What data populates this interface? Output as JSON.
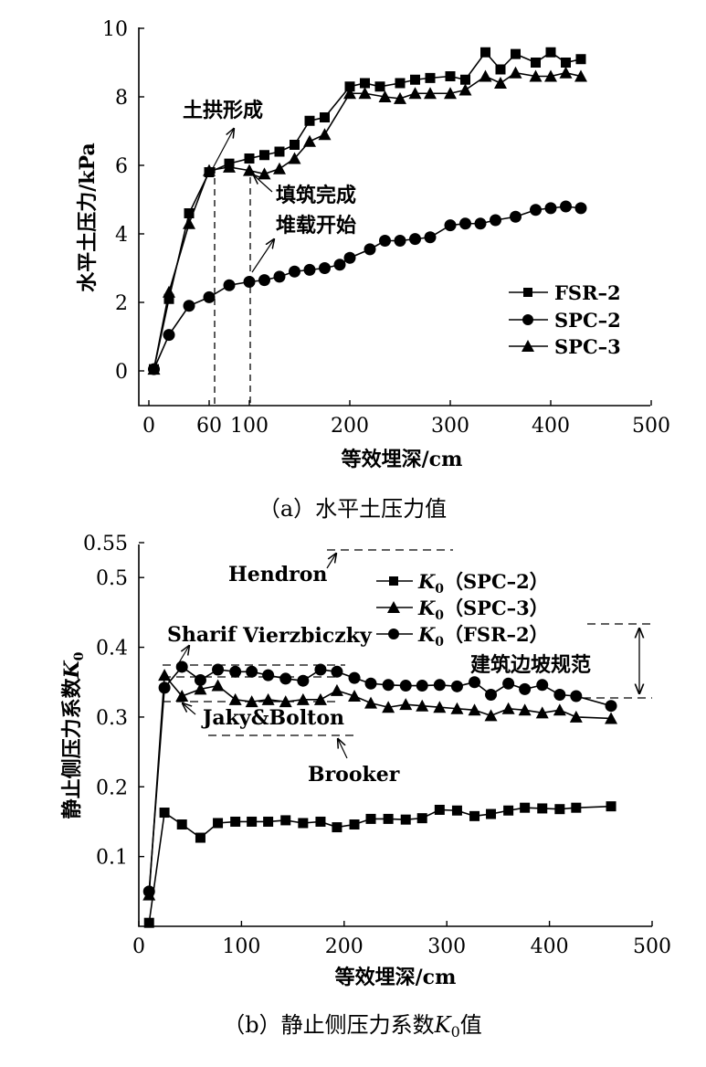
{
  "chart_data": [
    {
      "type": "line",
      "caption": "（a）水平土压力值",
      "xlabel": "等效埋深/cm",
      "ylabel": "水平土压力/kPa",
      "xlim": [
        -10,
        500
      ],
      "ylim": [
        -1,
        10
      ],
      "xticks": [
        0,
        200,
        300,
        400,
        500
      ],
      "extra_xticks": [
        "60",
        "100"
      ],
      "yticks": [
        0,
        2,
        4,
        6,
        8,
        10
      ],
      "series": [
        {
          "name": "FSR-2",
          "marker": "square",
          "x": [
            5,
            20,
            40,
            60,
            80,
            100,
            115,
            130,
            145,
            160,
            175,
            200,
            215,
            230,
            250,
            265,
            280,
            300,
            315,
            335,
            350,
            365,
            385,
            400,
            415,
            430
          ],
          "y": [
            0.05,
            2.1,
            4.6,
            5.8,
            6.05,
            6.2,
            6.3,
            6.4,
            6.6,
            7.3,
            7.4,
            8.3,
            8.4,
            8.3,
            8.4,
            8.5,
            8.55,
            8.6,
            8.5,
            9.3,
            8.8,
            9.25,
            9.0,
            9.3,
            9.0,
            9.1
          ]
        },
        {
          "name": "SPC-2",
          "marker": "circle",
          "x": [
            5,
            20,
            40,
            60,
            80,
            100,
            115,
            130,
            145,
            160,
            175,
            190,
            200,
            220,
            235,
            250,
            265,
            280,
            300,
            315,
            330,
            345,
            365,
            385,
            400,
            415,
            430
          ],
          "y": [
            0.05,
            1.05,
            1.9,
            2.15,
            2.5,
            2.6,
            2.65,
            2.75,
            2.9,
            2.95,
            3.0,
            3.1,
            3.3,
            3.55,
            3.8,
            3.8,
            3.85,
            3.9,
            4.25,
            4.3,
            4.3,
            4.4,
            4.5,
            4.7,
            4.75,
            4.8,
            4.75
          ]
        },
        {
          "name": "SPC-3",
          "marker": "triangle",
          "x": [
            5,
            20,
            40,
            60,
            80,
            100,
            115,
            130,
            145,
            160,
            175,
            200,
            215,
            235,
            250,
            265,
            280,
            300,
            315,
            335,
            350,
            365,
            385,
            400,
            415,
            430
          ],
          "y": [
            0.05,
            2.3,
            4.3,
            5.85,
            5.95,
            5.85,
            5.75,
            5.9,
            6.2,
            6.7,
            6.9,
            8.1,
            8.1,
            8.0,
            7.95,
            8.1,
            8.1,
            8.1,
            8.2,
            8.6,
            8.4,
            8.7,
            8.6,
            8.6,
            8.7,
            8.6
          ]
        }
      ],
      "annotations": [
        "土拱形成",
        "填筑完成",
        "堆载开始"
      ]
    },
    {
      "type": "line",
      "caption": "（b）静止侧压力系数K0值",
      "xlabel": "等效埋深/cm",
      "ylabel": "静止侧压力系数K0",
      "xlim": [
        0,
        500
      ],
      "ylim": [
        0,
        0.55
      ],
      "xticks": [
        0,
        100,
        200,
        300,
        400,
        500
      ],
      "yticks": [
        0.1,
        0.2,
        0.3,
        0.4,
        0.5,
        0.55
      ],
      "series": [
        {
          "name": "K0（SPC-2）",
          "marker": "square",
          "x": [
            10,
            25,
            42,
            60,
            77,
            94,
            110,
            126,
            143,
            160,
            177,
            193,
            210,
            226,
            243,
            260,
            276,
            293,
            310,
            327,
            343,
            360,
            376,
            393,
            410,
            426,
            460
          ],
          "y": [
            0.005,
            0.163,
            0.146,
            0.127,
            0.148,
            0.15,
            0.15,
            0.15,
            0.152,
            0.148,
            0.15,
            0.142,
            0.146,
            0.154,
            0.154,
            0.153,
            0.155,
            0.167,
            0.166,
            0.158,
            0.161,
            0.166,
            0.17,
            0.169,
            0.168,
            0.17,
            0.172
          ]
        },
        {
          "name": "K0（SPC-3）",
          "marker": "triangle",
          "x": [
            10,
            25,
            42,
            60,
            77,
            94,
            110,
            126,
            143,
            160,
            177,
            193,
            210,
            226,
            243,
            260,
            276,
            293,
            310,
            327,
            343,
            360,
            376,
            393,
            410,
            426,
            460
          ],
          "y": [
            0.045,
            0.36,
            0.33,
            0.34,
            0.345,
            0.325,
            0.322,
            0.325,
            0.322,
            0.325,
            0.325,
            0.338,
            0.33,
            0.32,
            0.314,
            0.318,
            0.316,
            0.314,
            0.312,
            0.31,
            0.302,
            0.312,
            0.31,
            0.306,
            0.31,
            0.3,
            0.298
          ]
        },
        {
          "name": "K0（FSR-2）",
          "marker": "circle",
          "x": [
            10,
            25,
            42,
            60,
            77,
            94,
            110,
            126,
            143,
            160,
            177,
            193,
            210,
            226,
            243,
            260,
            276,
            293,
            310,
            327,
            343,
            360,
            376,
            393,
            410,
            426,
            460
          ],
          "y": [
            0.05,
            0.342,
            0.372,
            0.353,
            0.368,
            0.365,
            0.365,
            0.36,
            0.355,
            0.352,
            0.368,
            0.365,
            0.356,
            0.348,
            0.346,
            0.345,
            0.345,
            0.346,
            0.344,
            0.35,
            0.332,
            0.348,
            0.34,
            0.346,
            0.332,
            0.33,
            0.316
          ]
        }
      ],
      "reference_lines": [
        {
          "name": "Hendron",
          "y": 0.54
        },
        {
          "name": "Sharif",
          "y": 0.372
        },
        {
          "name": "Vierzbiczky",
          "y": 0.356
        },
        {
          "name": "Jaky&Bolton",
          "y": 0.32
        },
        {
          "name": "Brooker",
          "y": 0.27
        },
        {
          "name": "建筑边坡规范",
          "range": [
            0.325,
            0.43
          ]
        }
      ]
    }
  ],
  "labels": {
    "a_ann_arch": "土拱形成",
    "a_ann_fill": "填筑完成",
    "a_ann_load": "堆载开始",
    "b_hendron": "Hendron",
    "b_sharif": "Sharif",
    "b_vierz": "Vierzbiczky",
    "b_jaky": "Jaky&Bolton",
    "b_brooker": "Brooker",
    "b_code": "建筑边坡规范",
    "b_ylabel_main": "静止侧压力系数",
    "b_ylabel_k": "K",
    "b_ylabel_sub": "0",
    "b_caption_main": "（b）静止侧压力系数",
    "b_caption_k": "K",
    "b_caption_sub": "0",
    "b_caption_tail": "值",
    "k_sym": "K",
    "k_sub": "0",
    "leg_spc2": "（SPC–2）",
    "leg_spc3": "（SPC–3）",
    "leg_fsr2": "（FSR–2）",
    "a_leg_fsr2": "FSR–2",
    "a_leg_spc2": "SPC–2",
    "a_leg_spc3": "SPC–3"
  }
}
